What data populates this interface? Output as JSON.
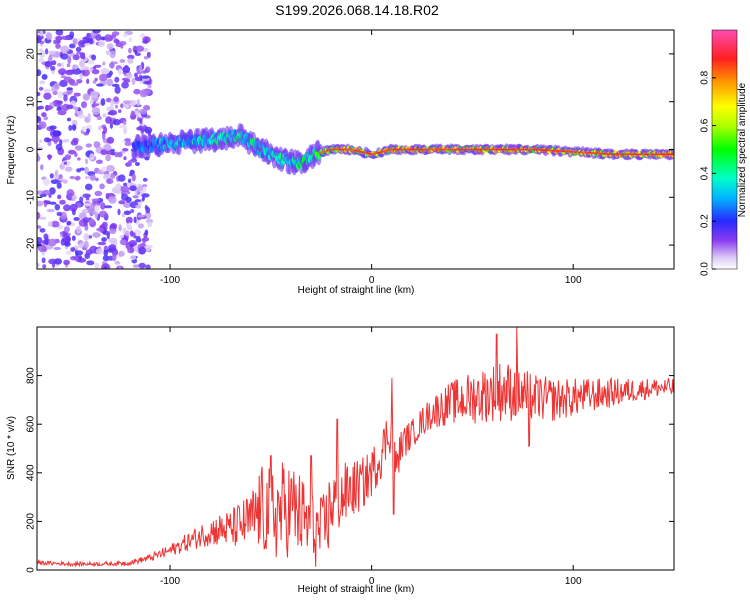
{
  "chart_data": [
    {
      "type": "heatmap",
      "title": "S199.2026.068.14.18.R02",
      "xlabel": "Height of straight line (km)",
      "ylabel": "Frequency (Hz)",
      "xlim": [
        -166,
        150
      ],
      "ylim": [
        -25,
        25
      ],
      "xticks": [
        -100,
        0,
        100
      ],
      "yticks": [
        20,
        10,
        0,
        -10,
        -20
      ],
      "colorbar": {
        "label": "Normalized spectral amplitude",
        "range": [
          0,
          1
        ],
        "ticks": [
          0.0,
          0.2,
          0.4,
          0.6,
          0.8
        ]
      },
      "ridge": {
        "x": [
          -115,
          -95,
          -80,
          -65,
          -55,
          -45,
          -35,
          -28,
          -20,
          -10,
          0,
          10,
          20,
          40,
          60,
          80,
          100,
          120,
          150
        ],
        "freq": [
          0.5,
          1.5,
          2,
          3,
          0,
          -2,
          -3,
          -1,
          0,
          0,
          -1,
          0,
          0,
          0,
          0,
          0,
          -0.5,
          -1,
          -1
        ],
        "amplitude": [
          0.3,
          0.4,
          0.45,
          0.5,
          0.45,
          0.45,
          0.5,
          0.6,
          0.75,
          0.8,
          0.8,
          0.85,
          0.85,
          0.85,
          0.85,
          0.85,
          0.85,
          0.85,
          0.85
        ]
      },
      "noise_region": {
        "x_from": -166,
        "x_to": -110,
        "amplitude": 0.1
      }
    },
    {
      "type": "line",
      "xlabel": "Height of straight line (km)",
      "ylabel": "SNR (10 * v/v)",
      "xlim": [
        -166,
        150
      ],
      "ylim": [
        0,
        1000
      ],
      "xticks": [
        -100,
        0,
        100
      ],
      "yticks": [
        0,
        200,
        400,
        600,
        800
      ],
      "series": [
        {
          "name": "SNR",
          "color": "#ee3333",
          "x": [
            -166,
            -150,
            -130,
            -120,
            -110,
            -100,
            -90,
            -80,
            -70,
            -60,
            -55,
            -50,
            -45,
            -40,
            -35,
            -30,
            -25,
            -22,
            -20,
            -15,
            -10,
            -5,
            0,
            5,
            8,
            10,
            12,
            15,
            20,
            25,
            30,
            40,
            50,
            60,
            65,
            70,
            75,
            80,
            90,
            100,
            110,
            120,
            130,
            140,
            150
          ],
          "values": [
            30,
            25,
            25,
            30,
            50,
            80,
            120,
            160,
            170,
            200,
            250,
            230,
            240,
            260,
            220,
            170,
            150,
            200,
            280,
            300,
            330,
            350,
            400,
            480,
            560,
            580,
            420,
            520,
            560,
            610,
            650,
            690,
            710,
            730,
            740,
            730,
            720,
            710,
            700,
            710,
            720,
            730,
            740,
            750,
            750
          ],
          "noise_amplitude": [
            8,
            8,
            8,
            10,
            15,
            25,
            40,
            60,
            80,
            120,
            180,
            200,
            210,
            200,
            180,
            160,
            150,
            160,
            160,
            140,
            120,
            110,
            100,
            100,
            100,
            90,
            80,
            70,
            60,
            60,
            70,
            90,
            110,
            120,
            130,
            120,
            110,
            100,
            90,
            80,
            70,
            60,
            50,
            40,
            40
          ],
          "spikes": [
            {
              "x": -50,
              "y": 470
            },
            {
              "x": -30,
              "y": 470
            },
            {
              "x": -17,
              "y": 620
            },
            {
              "x": 10,
              "y": 790
            },
            {
              "x": 11,
              "y": 230
            },
            {
              "x": 62,
              "y": 970
            },
            {
              "x": 72,
              "y": 1000
            },
            {
              "x": 78,
              "y": 510
            }
          ]
        }
      ]
    }
  ]
}
